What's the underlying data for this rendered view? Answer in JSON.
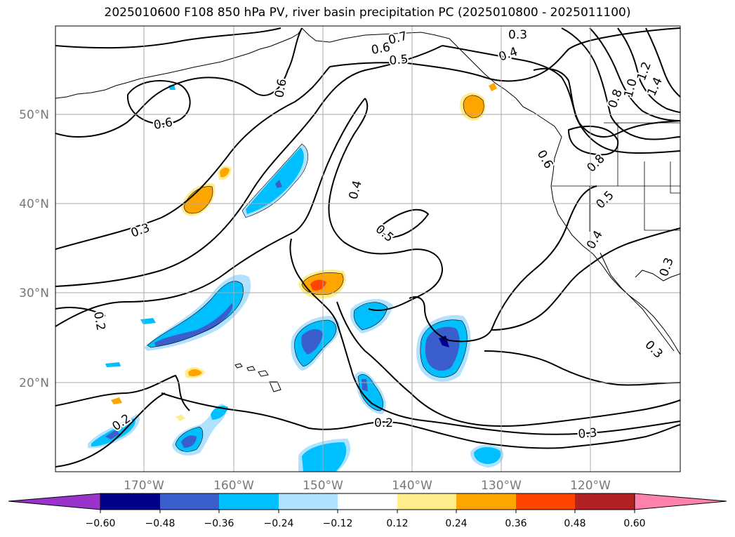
{
  "title": "2025010600 F108 850 hPa PV, river basin precipitation PC (2025010800 - 2025011100)",
  "lat_labels": [
    "50°N",
    "40°N",
    "30°N",
    "20°N"
  ],
  "lon_labels": [
    "170°W",
    "160°W",
    "150°W",
    "140°W",
    "130°W",
    "120°W"
  ],
  "colorbar": {
    "ticks": [
      "−0.60",
      "−0.48",
      "−0.36",
      "−0.24",
      "−0.12",
      "0.12",
      "0.24",
      "0.36",
      "0.48",
      "0.60"
    ],
    "colors": [
      "#9933cc",
      "#00008b",
      "#3a5fcd",
      "#00bfff",
      "#b0e2ff",
      "#ffffff",
      "#ffec8b",
      "#ffa500",
      "#ff4500",
      "#b22222",
      "#ff82ab"
    ]
  },
  "contour_labels": [
    "0.7",
    "0.6",
    "0.5",
    "0.3",
    "0.4",
    "0.6",
    "0.6",
    "0.3",
    "0.2",
    "0.4",
    "0.5",
    "0.6",
    "0.8",
    "1.0",
    "1.2",
    "1.4",
    "0.8",
    "0.5",
    "0.4",
    "0.3",
    "0.3",
    "0.2",
    "0.3",
    "0.2"
  ]
}
